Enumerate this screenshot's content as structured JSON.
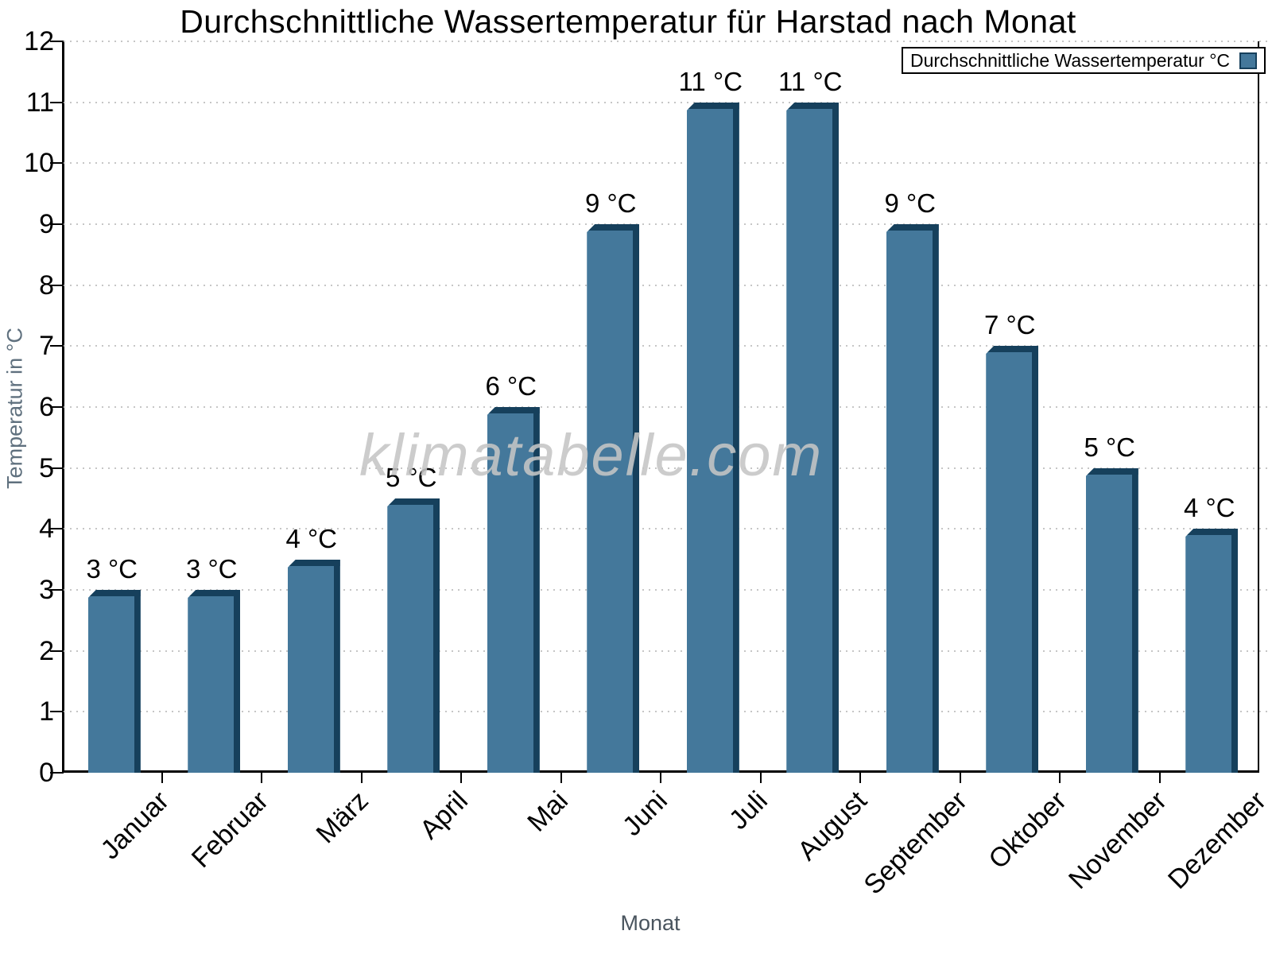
{
  "title": "Durchschnittliche Wassertemperatur für Harstad nach Monat",
  "legend": {
    "label": "Durchschnittliche Wassertemperatur °C"
  },
  "watermark": "klimatabelle.com",
  "axes": {
    "y_label": "Temperatur in °C",
    "x_label": "Monat",
    "y_ticks": [
      0,
      1,
      2,
      3,
      4,
      5,
      6,
      7,
      8,
      9,
      10,
      11,
      12
    ]
  },
  "colors": {
    "bar_face": "#44789B",
    "bar_edge": "#16405C",
    "grid": "#c6c6c6",
    "axis": "#000000",
    "watermark": "#c5c5c5"
  },
  "chart_data": {
    "type": "bar",
    "title": "Durchschnittliche Wassertemperatur für Harstad nach Monat",
    "categories": [
      "Januar",
      "Februar",
      "März",
      "April",
      "Mai",
      "Juni",
      "Juli",
      "August",
      "September",
      "Oktober",
      "November",
      "Dezember"
    ],
    "values": [
      3,
      3,
      3.5,
      4.5,
      6,
      9,
      11,
      11,
      9,
      7,
      5,
      4
    ],
    "bar_labels": [
      "3 °C",
      "3 °C",
      "4 °C",
      "5 °C",
      "6 °C",
      "9 °C",
      "11 °C",
      "11 °C",
      "9 °C",
      "7 °C",
      "5 °C",
      "4 °C"
    ],
    "xlabel": "Monat",
    "ylabel": "Temperatur in °C",
    "ylim": [
      0,
      12
    ],
    "ytick_step": 1,
    "grid": "horizontal-dotted",
    "legend_entries": [
      "Durchschnittliche Wassertemperatur °C"
    ],
    "legend_position": "top-right",
    "bar_style": "3d-extruded"
  }
}
